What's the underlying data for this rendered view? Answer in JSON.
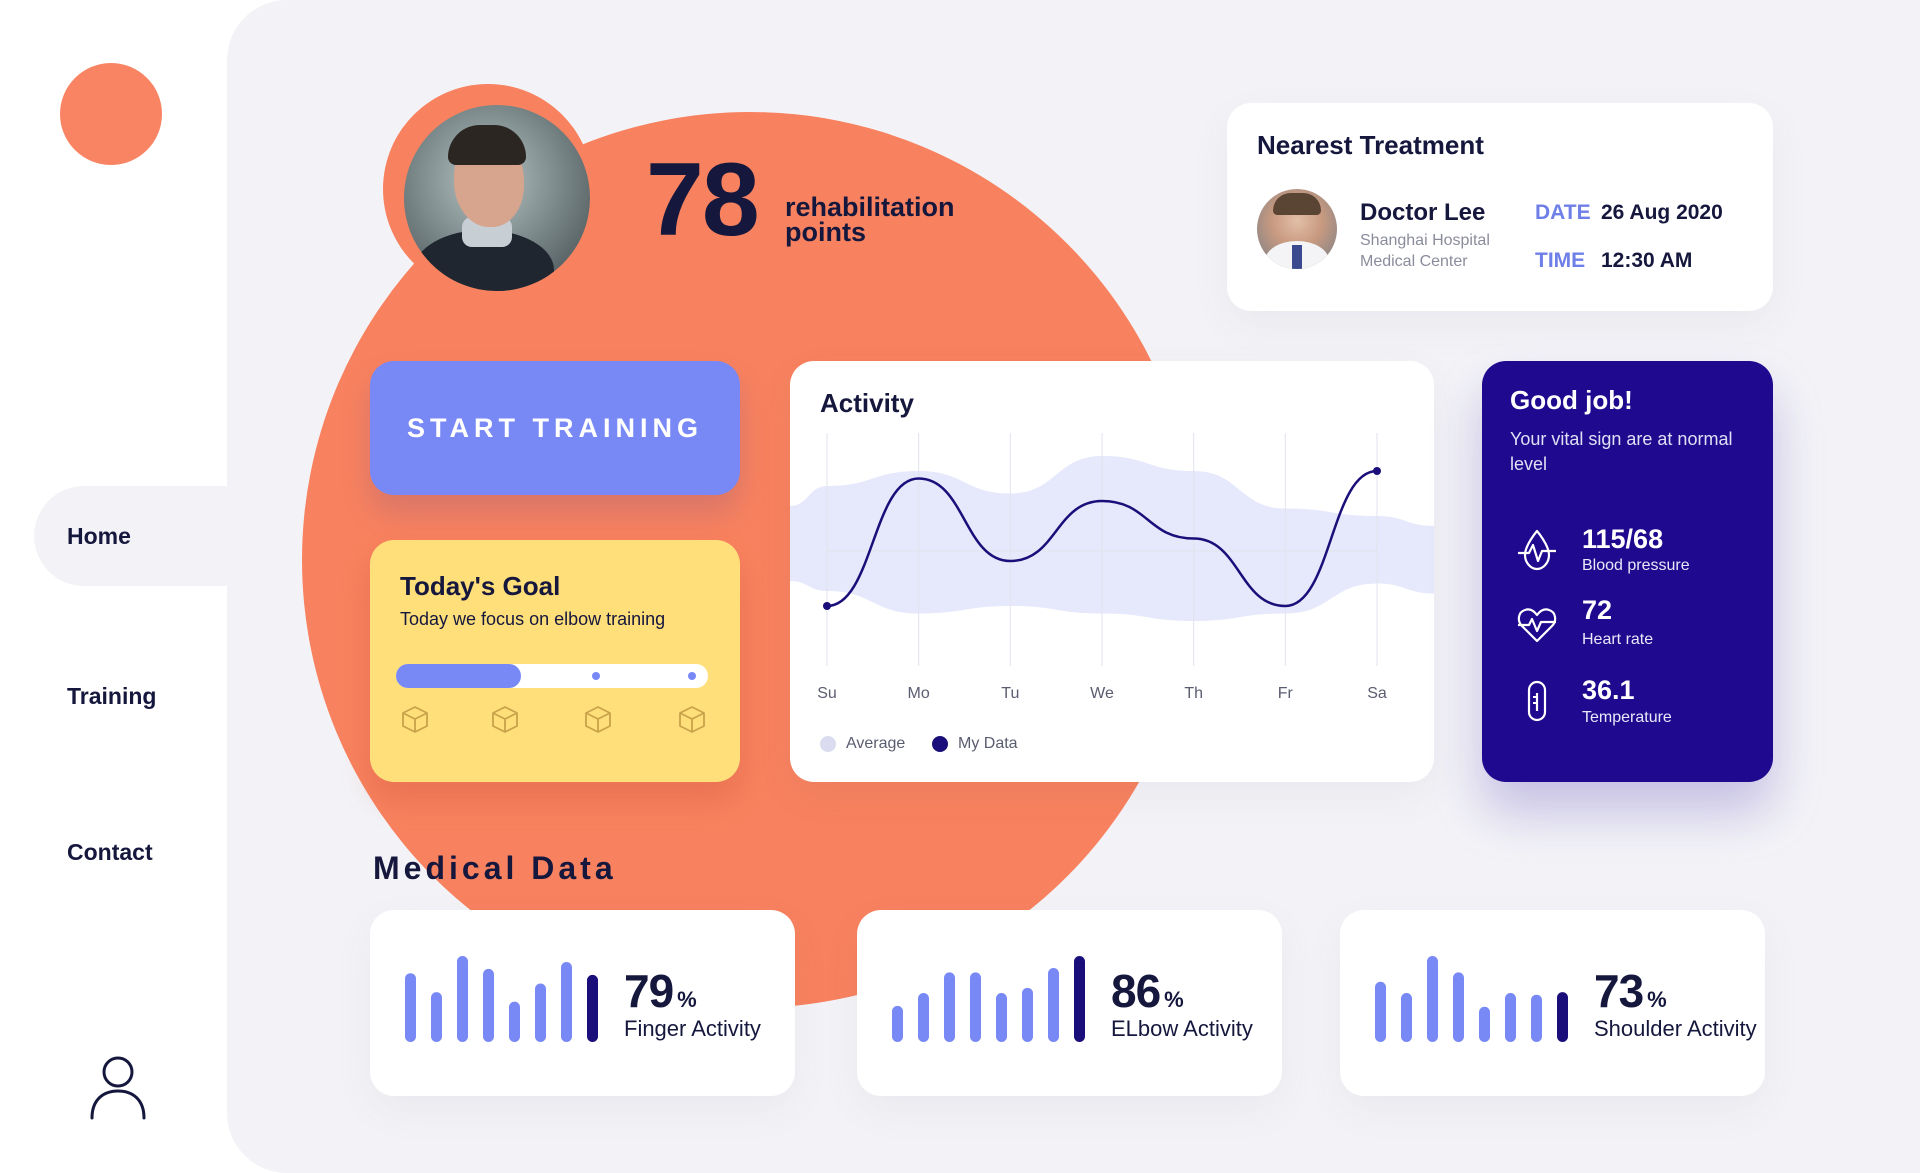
{
  "nav": {
    "items": [
      {
        "label": "Home"
      },
      {
        "label": "Training"
      },
      {
        "label": "Contact"
      }
    ]
  },
  "profile": {
    "points": "78",
    "points_label_line1": "rehabilitation",
    "points_label_line2": "points"
  },
  "treatment": {
    "title": "Nearest Treatment",
    "doctor_name": "Doctor Lee",
    "hospital_line1": "Shanghai Hospital",
    "hospital_line2": "Medical Center",
    "date_label": "DATE",
    "date_value": "26 Aug 2020",
    "time_label": "TIME",
    "time_value": "12:30 AM"
  },
  "actions": {
    "start_training": "START TRAINING"
  },
  "goal": {
    "title": "Today's Goal",
    "subtitle": "Today we focus on elbow training",
    "progress_fraction": 0.4,
    "milestones": 4
  },
  "activity": {
    "title": "Activity",
    "legend": [
      {
        "label": "Average",
        "color": "#dcdcf0"
      },
      {
        "label": "My Data",
        "color": "#1a0f7a"
      }
    ]
  },
  "chart_data": {
    "type": "line",
    "title": "Activity",
    "categories": [
      "Su",
      "Mo",
      "Tu",
      "We",
      "Th",
      "Fr",
      "Sa"
    ],
    "x_points": [
      0,
      1,
      2,
      3,
      4,
      5,
      6
    ],
    "series": [
      {
        "name": "My Data",
        "values": [
          0.1,
          0.95,
          0.4,
          0.8,
          0.55,
          0.1,
          1.0
        ],
        "color": "#1a0f7a"
      },
      {
        "name": "Average",
        "band_low": [
          0.2,
          0.05,
          0.1,
          0.05,
          0.0,
          0.05,
          0.25
        ],
        "band_high": [
          0.9,
          1.0,
          0.85,
          1.1,
          1.0,
          0.75,
          0.7
        ],
        "color": "#e6e8fb"
      }
    ],
    "grid": true,
    "legend_position": "bottom-left"
  },
  "vitals": {
    "title": "Good job!",
    "subtitle": "Your vital sign are at normal level",
    "items": [
      {
        "value": "115/68",
        "label": "Blood pressure",
        "icon": "blood-pressure-icon"
      },
      {
        "value": "72",
        "label": "Heart rate",
        "icon": "heart-rate-icon"
      },
      {
        "value": "36.1",
        "label": "Temperature",
        "icon": "thermometer-icon"
      }
    ]
  },
  "medical": {
    "title": "Medical Data",
    "cards": [
      {
        "value": "79",
        "unit": "%",
        "label": "Finger Activity",
        "bars": [
          0.8,
          0.58,
          1.0,
          0.85,
          0.47,
          0.68,
          0.93,
          0.78
        ]
      },
      {
        "value": "86",
        "unit": "%",
        "label": "ELbow Activity",
        "bars": [
          0.42,
          0.57,
          0.81,
          0.81,
          0.57,
          0.63,
          0.86,
          1.0
        ]
      },
      {
        "value": "73",
        "unit": "%",
        "label": "Shoulder Activity",
        "bars": [
          0.7,
          0.57,
          1.0,
          0.81,
          0.41,
          0.57,
          0.55,
          0.58
        ]
      }
    ],
    "bar_color": "#7889f6",
    "bar_accent_color": "#1a0f7a"
  }
}
